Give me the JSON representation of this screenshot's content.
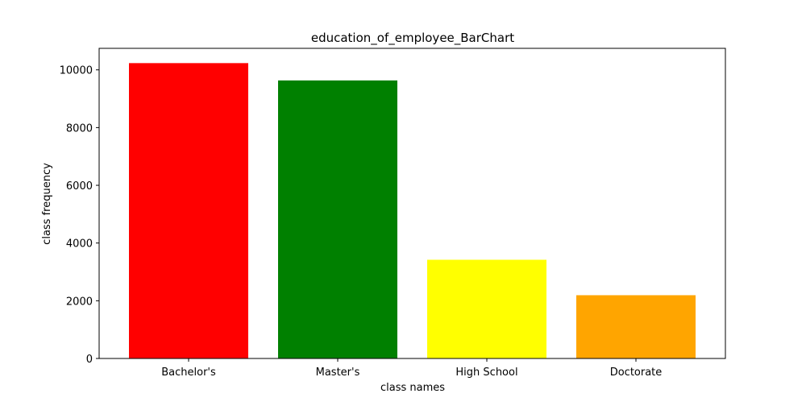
{
  "chart_data": {
    "type": "bar",
    "title": "education_of_employee_BarChart",
    "xlabel": "class names",
    "ylabel": "class frequency",
    "categories": [
      "Bachelor's",
      "Master's",
      "High School",
      "Doctorate"
    ],
    "values": [
      10234,
      9634,
      3420,
      2192
    ],
    "colors": [
      "#ff0000",
      "#008000",
      "#ffff00",
      "#ffa500"
    ],
    "ylim": [
      0,
      10746
    ],
    "yticks": [
      0,
      2000,
      4000,
      6000,
      8000,
      10000
    ],
    "grid": false,
    "legend": "none"
  }
}
